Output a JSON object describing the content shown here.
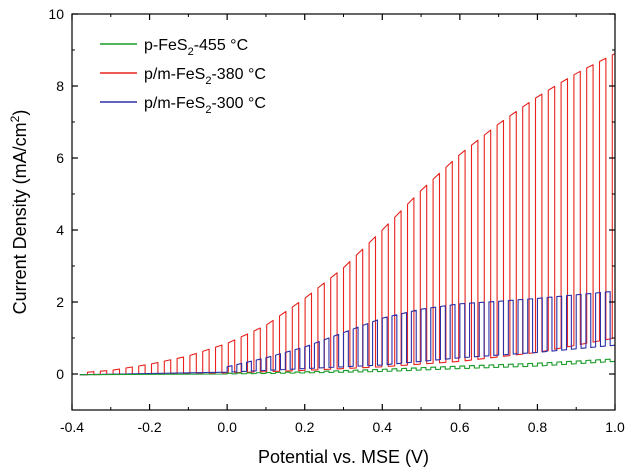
{
  "chart_data": {
    "type": "line",
    "xlabel": "Potential vs. MSE (V)",
    "ylabel": {
      "pre": "Current Density (mA/cm",
      "sup": "2",
      "post": ")"
    },
    "xlim": [
      -0.4,
      1.0
    ],
    "ylim": [
      -1,
      10
    ],
    "xticks": [
      -0.4,
      -0.2,
      0.0,
      0.2,
      0.4,
      0.6,
      0.8,
      1.0
    ],
    "xtick_labels": [
      "-0.4",
      "-0.2",
      "0.0",
      "0.2",
      "0.4",
      "0.6",
      "0.8",
      "1.0"
    ],
    "yticks": [
      0,
      2,
      4,
      6,
      8,
      10
    ],
    "ytick_labels": [
      "0",
      "2",
      "4",
      "6",
      "8",
      "10"
    ],
    "grid": false,
    "legend_position": "top-left",
    "description": "chopped-light linear sweep voltammetry; each series alternates between a light (upper) and dark (lower) envelope",
    "series": [
      {
        "name": {
          "pre": "p-FeS",
          "sub": "2",
          "post": "-455 °C"
        },
        "color": "#1a9b2a",
        "chop_start": 0.0,
        "chop_period": 0.025,
        "light": [
          [
            -0.38,
            0.0
          ],
          [
            0.0,
            0.02
          ],
          [
            0.2,
            0.06
          ],
          [
            0.4,
            0.13
          ],
          [
            0.6,
            0.22
          ],
          [
            0.8,
            0.3
          ],
          [
            1.0,
            0.42
          ]
        ],
        "dark": [
          [
            -0.38,
            -0.02
          ],
          [
            0.0,
            0.0
          ],
          [
            0.2,
            0.03
          ],
          [
            0.4,
            0.07
          ],
          [
            0.6,
            0.15
          ],
          [
            0.8,
            0.22
          ],
          [
            1.0,
            0.35
          ]
        ]
      },
      {
        "name": {
          "pre": "p/m-FeS",
          "sub": "2",
          "post": "-380 °C"
        },
        "color": "#e8231d",
        "chop_start": -0.36,
        "chop_period": 0.033,
        "light": [
          [
            -0.36,
            0.05
          ],
          [
            -0.3,
            0.1
          ],
          [
            -0.2,
            0.27
          ],
          [
            -0.1,
            0.5
          ],
          [
            0.0,
            0.85
          ],
          [
            0.1,
            1.35
          ],
          [
            0.2,
            2.1
          ],
          [
            0.3,
            2.95
          ],
          [
            0.4,
            4.0
          ],
          [
            0.5,
            5.1
          ],
          [
            0.6,
            6.1
          ],
          [
            0.7,
            6.95
          ],
          [
            0.8,
            7.7
          ],
          [
            0.9,
            8.35
          ],
          [
            1.0,
            8.9
          ]
        ],
        "dark": [
          [
            -0.36,
            -0.02
          ],
          [
            -0.2,
            0.0
          ],
          [
            0.0,
            0.03
          ],
          [
            0.2,
            0.1
          ],
          [
            0.4,
            0.2
          ],
          [
            0.6,
            0.35
          ],
          [
            0.8,
            0.6
          ],
          [
            1.0,
            1.0
          ]
        ]
      },
      {
        "name": {
          "pre": "p/m-FeS",
          "sub": "2",
          "post": "-300 °C"
        },
        "color": "#2b30a6",
        "chop_start": 0.0,
        "chop_period": 0.025,
        "light": [
          [
            -0.38,
            0.0
          ],
          [
            -0.1,
            0.04
          ],
          [
            0.0,
            0.2
          ],
          [
            0.1,
            0.45
          ],
          [
            0.2,
            0.75
          ],
          [
            0.3,
            1.15
          ],
          [
            0.4,
            1.55
          ],
          [
            0.5,
            1.8
          ],
          [
            0.6,
            1.95
          ],
          [
            0.7,
            2.02
          ],
          [
            0.8,
            2.1
          ],
          [
            0.9,
            2.2
          ],
          [
            1.0,
            2.3
          ]
        ],
        "dark": [
          [
            -0.38,
            -0.02
          ],
          [
            0.0,
            0.05
          ],
          [
            0.2,
            0.15
          ],
          [
            0.4,
            0.25
          ],
          [
            0.6,
            0.45
          ],
          [
            0.8,
            0.6
          ],
          [
            1.0,
            0.8
          ]
        ]
      }
    ]
  }
}
